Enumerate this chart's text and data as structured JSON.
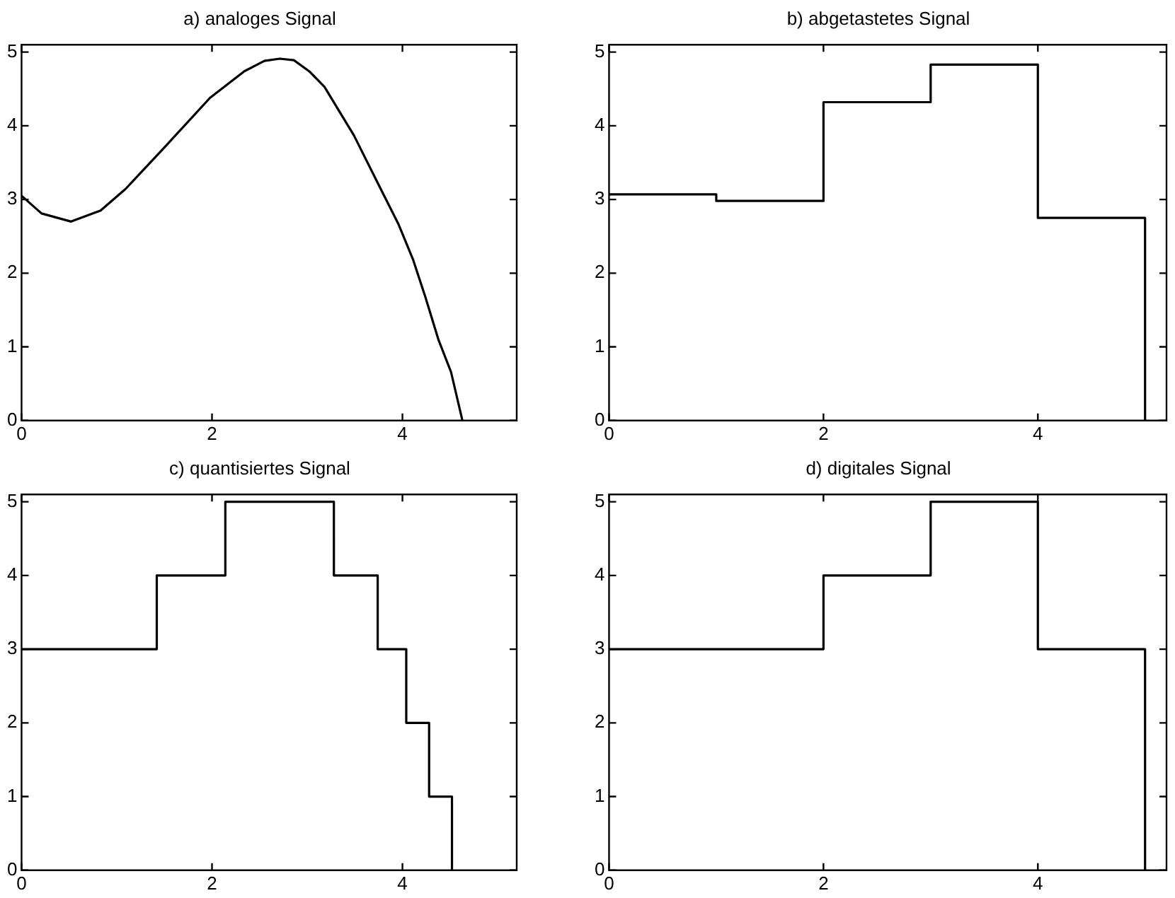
{
  "chart_data": [
    {
      "type": "line",
      "title": "a) analoges Signal",
      "x": [
        0,
        0.21,
        0.52,
        0.83,
        1.09,
        1.51,
        1.98,
        2.34,
        2.55,
        2.71,
        2.86,
        3.02,
        3.18,
        3.49,
        3.8,
        3.96,
        4.11,
        4.24,
        4.38,
        4.51,
        4.63
      ],
      "series": [
        {
          "color": "#000000",
          "values": [
            3.05,
            2.81,
            2.7,
            2.85,
            3.14,
            3.72,
            4.38,
            4.74,
            4.88,
            4.91,
            4.89,
            4.74,
            4.53,
            3.87,
            3.07,
            2.66,
            2.19,
            1.68,
            1.09,
            0.66,
            0
          ]
        }
      ],
      "xlim": [
        0,
        5.2
      ],
      "ylim": [
        0,
        5.1
      ],
      "xticks": [
        0,
        2,
        4
      ],
      "yticks": [
        0,
        1,
        2,
        3,
        4,
        5
      ]
    },
    {
      "type": "step",
      "title": "b) abgetastetes Signal",
      "x": [
        0,
        1,
        2,
        3,
        4,
        5
      ],
      "series": [
        {
          "color": "#000000",
          "values": [
            3.07,
            2.98,
            4.32,
            4.83,
            2.75,
            0
          ]
        }
      ],
      "xlim": [
        0,
        5.2
      ],
      "ylim": [
        0,
        5.1
      ],
      "xticks": [
        0,
        2,
        4
      ],
      "yticks": [
        0,
        1,
        2,
        3,
        4,
        5
      ]
    },
    {
      "type": "step",
      "title": "c) quantisiertes Signal",
      "x": [
        0,
        1.42,
        2.14,
        3.28,
        3.74,
        4.04,
        4.28,
        4.52
      ],
      "series": [
        {
          "color": "#000000",
          "values": [
            3,
            4,
            5,
            4,
            3,
            2,
            1,
            0
          ]
        }
      ],
      "xlim": [
        0,
        5.2
      ],
      "ylim": [
        0,
        5.1
      ],
      "xticks": [
        0,
        2,
        4
      ],
      "yticks": [
        0,
        1,
        2,
        3,
        4,
        5
      ]
    },
    {
      "type": "step",
      "title": "d) digitales Signal",
      "x": [
        0,
        1,
        2,
        3,
        4,
        5
      ],
      "series": [
        {
          "color": "#000000",
          "values": [
            3,
            3,
            4,
            5,
            3,
            0
          ]
        }
      ],
      "xlim": [
        0,
        5.2
      ],
      "ylim": [
        0,
        5.1
      ],
      "xticks": [
        0,
        2,
        4
      ],
      "yticks": [
        0,
        1,
        2,
        3,
        4,
        5
      ]
    }
  ]
}
